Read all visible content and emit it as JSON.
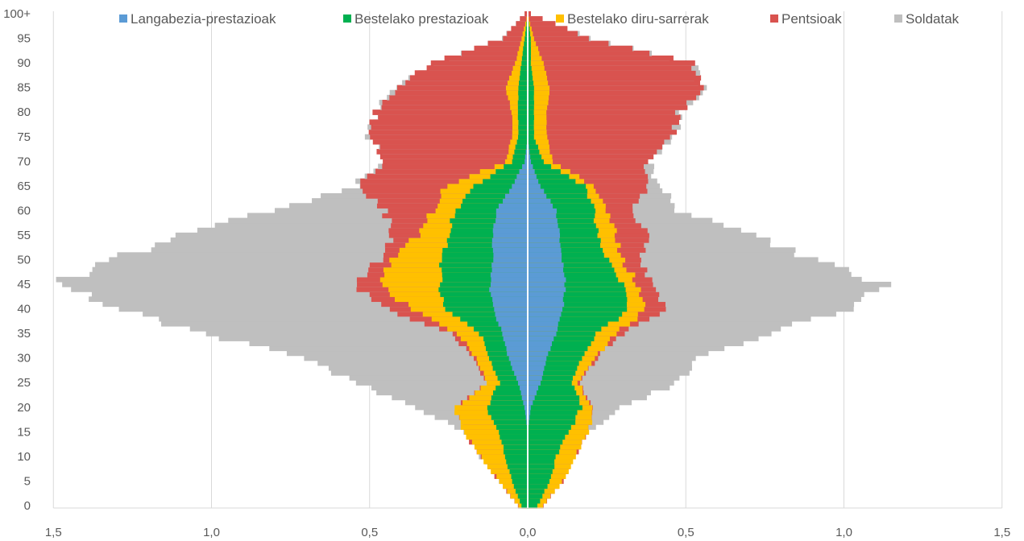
{
  "chart_data": {
    "type": "bar",
    "orientation": "horizontal",
    "layout": "population pyramid, stacked on both sides of a centre axis",
    "title": "",
    "xlabel": "",
    "ylabel": "",
    "x_ticks": [
      "1,5",
      "1,0",
      "0,5",
      "0,0",
      "0,5",
      "1,0",
      "1,5"
    ],
    "xlim": [
      -1.5,
      1.5
    ],
    "grid": "vertical",
    "legend_position": "top",
    "y_tick_labels": [
      "0",
      "5",
      "10",
      "15",
      "20",
      "25",
      "30",
      "35",
      "40",
      "45",
      "50",
      "55",
      "60",
      "65",
      "70",
      "75",
      "80",
      "85",
      "90",
      "95",
      "100+"
    ],
    "categories_note": "ages 0..100 (100 = 100+), one row per single year",
    "key_ages": [
      0,
      5,
      10,
      15,
      20,
      25,
      30,
      35,
      40,
      45,
      50,
      55,
      60,
      65,
      70,
      75,
      80,
      85,
      90,
      95,
      100
    ],
    "series": [
      {
        "name": "Langabezia-prestazioak",
        "color": "#5B9BD5"
      },
      {
        "name": "Bestelako prestazioak",
        "color": "#00B050"
      },
      {
        "name": "Bestelako diru-sarrerak",
        "color": "#FFC000"
      },
      {
        "name": "Pentsioak",
        "color": "#D9534F"
      },
      {
        "name": "Soldatak",
        "color": "#BFBFBF"
      }
    ],
    "left": {
      "cumulative_at_key_ages": {
        "Langabezia-prestazioak": [
          0,
          0,
          0,
          0,
          0.01,
          0.03,
          0.06,
          0.08,
          0.11,
          0.12,
          0.11,
          0.11,
          0.1,
          0.05,
          0.01,
          0,
          0,
          0,
          0,
          0,
          0
        ],
        "Bestelako prestazioak": [
          0.02,
          0.05,
          0.07,
          0.09,
          0.13,
          0.09,
          0.12,
          0.15,
          0.26,
          0.28,
          0.27,
          0.25,
          0.23,
          0.17,
          0.05,
          0.03,
          0.03,
          0.03,
          0.02,
          0.01,
          0
        ],
        "Bestelako diru-sarrerak": [
          0.03,
          0.09,
          0.15,
          0.2,
          0.23,
          0.13,
          0.16,
          0.22,
          0.37,
          0.47,
          0.43,
          0.35,
          0.3,
          0.26,
          0.07,
          0.05,
          0.05,
          0.07,
          0.04,
          0.02,
          0
        ],
        "Pentsioak": [
          0.03,
          0.09,
          0.15,
          0.2,
          0.23,
          0.13,
          0.17,
          0.24,
          0.45,
          0.55,
          0.47,
          0.43,
          0.45,
          0.54,
          0.45,
          0.5,
          0.48,
          0.42,
          0.3,
          0.08,
          0.01
        ],
        "Soldatak": [
          0.03,
          0.09,
          0.15,
          0.2,
          0.35,
          0.55,
          0.72,
          1.0,
          1.3,
          1.5,
          1.3,
          1.1,
          0.8,
          0.55,
          0.45,
          0.5,
          0.48,
          0.42,
          0.3,
          0.08,
          0.01
        ]
      }
    },
    "right": {
      "cumulative_at_key_ages": {
        "Langabezia-prestazioak": [
          0,
          0,
          0,
          0,
          0.01,
          0.04,
          0.06,
          0.09,
          0.11,
          0.12,
          0.11,
          0.1,
          0.09,
          0.04,
          0.01,
          0,
          0,
          0,
          0,
          0,
          0
        ],
        "Bestelako prestazioak": [
          0.03,
          0.07,
          0.09,
          0.13,
          0.17,
          0.14,
          0.17,
          0.22,
          0.32,
          0.3,
          0.25,
          0.22,
          0.21,
          0.18,
          0.05,
          0.02,
          0.02,
          0.02,
          0.01,
          0.01,
          0
        ],
        "Bestelako diru-sarrerak": [
          0.05,
          0.11,
          0.15,
          0.19,
          0.21,
          0.16,
          0.21,
          0.28,
          0.38,
          0.35,
          0.3,
          0.28,
          0.25,
          0.21,
          0.08,
          0.06,
          0.06,
          0.07,
          0.05,
          0.02,
          0
        ],
        "Pentsioak": [
          0.05,
          0.11,
          0.15,
          0.19,
          0.21,
          0.16,
          0.22,
          0.3,
          0.43,
          0.4,
          0.35,
          0.38,
          0.33,
          0.38,
          0.38,
          0.46,
          0.48,
          0.56,
          0.52,
          0.2,
          0.01
        ],
        "Soldatak": [
          0.05,
          0.11,
          0.15,
          0.19,
          0.3,
          0.47,
          0.55,
          0.75,
          1.0,
          1.12,
          0.9,
          0.72,
          0.48,
          0.42,
          0.38,
          0.46,
          0.48,
          0.56,
          0.52,
          0.2,
          0.01
        ]
      }
    }
  }
}
